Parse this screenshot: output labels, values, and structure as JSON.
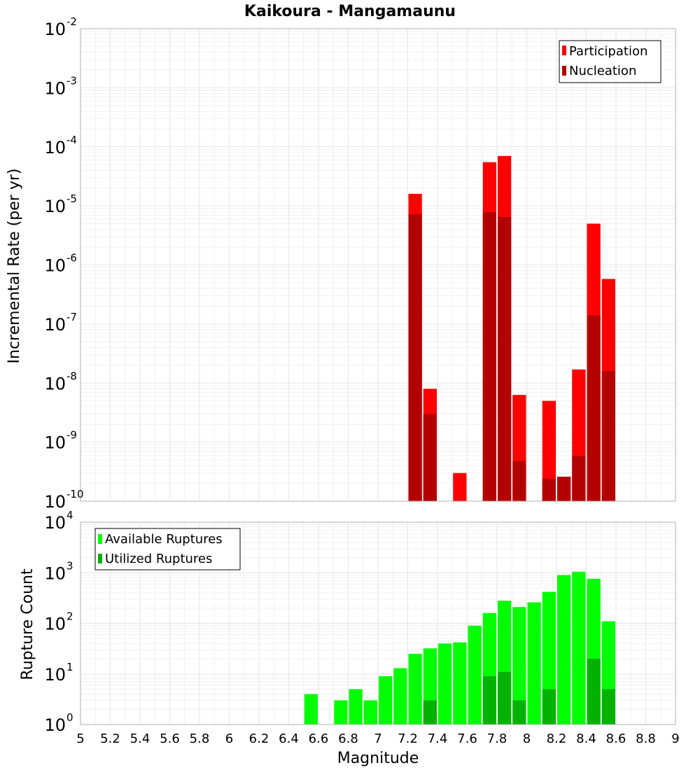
{
  "chart_data": [
    {
      "type": "bar",
      "title": "Kaikoura - Mangamaunu",
      "ylabel": "Incremental Rate (per yr)",
      "xlabel": "",
      "yscale": "log",
      "ylim": [
        1e-10,
        0.01
      ],
      "xlim": [
        5,
        9
      ],
      "grid": true,
      "legend_position": "top-right",
      "series": [
        {
          "name": "Participation",
          "color": "#ff0000",
          "x": [
            7.25,
            7.35,
            7.55,
            7.75,
            7.85,
            7.95,
            8.15,
            8.25,
            8.35,
            8.45,
            8.55
          ],
          "values": [
            1.6e-05,
            8e-09,
            3e-10,
            5.5e-05,
            7e-05,
            6.3e-09,
            5e-09,
            2.6e-10,
            1.7e-08,
            5e-06,
            5.8e-07
          ]
        },
        {
          "name": "Nucleation",
          "color": "#b30000",
          "x": [
            7.25,
            7.35,
            7.75,
            7.85,
            7.95,
            8.15,
            8.25,
            8.35,
            8.45,
            8.55
          ],
          "values": [
            7.2e-06,
            3e-09,
            7.8e-06,
            6.5e-06,
            4.8e-10,
            2.4e-10,
            2.6e-10,
            5.8e-10,
            1.4e-07,
            1.6e-08
          ]
        }
      ]
    },
    {
      "type": "bar",
      "title": "",
      "ylabel": "Rupture Count",
      "xlabel": "Magnitude",
      "yscale": "log",
      "ylim": [
        1,
        10000
      ],
      "xlim": [
        5,
        9
      ],
      "grid": true,
      "legend_position": "top-left",
      "x_ticks": [
        "5",
        "5.2",
        "5.4",
        "5.6",
        "5.8",
        "6",
        "6.2",
        "6.4",
        "6.6",
        "6.8",
        "7",
        "7.2",
        "7.4",
        "7.6",
        "7.8",
        "8",
        "8.2",
        "8.4",
        "8.6",
        "8.8",
        "9"
      ],
      "series": [
        {
          "name": "Available Ruptures",
          "color": "#00ff00",
          "x": [
            6.55,
            6.75,
            6.85,
            6.95,
            7.05,
            7.15,
            7.25,
            7.35,
            7.45,
            7.55,
            7.65,
            7.75,
            7.85,
            7.95,
            8.05,
            8.15,
            8.25,
            8.35,
            8.45,
            8.55
          ],
          "values": [
            4,
            3,
            5,
            3,
            9,
            13,
            25,
            32,
            40,
            42,
            90,
            160,
            280,
            210,
            260,
            420,
            900,
            1050,
            760,
            110
          ]
        },
        {
          "name": "Utilized Ruptures",
          "color": "#00b300",
          "x": [
            7.25,
            7.35,
            7.55,
            7.75,
            7.85,
            7.95,
            8.15,
            8.25,
            8.35,
            8.45,
            8.55
          ],
          "values": [
            1,
            3,
            1,
            9,
            11,
            3,
            5,
            1,
            1,
            20,
            5
          ]
        }
      ]
    }
  ]
}
